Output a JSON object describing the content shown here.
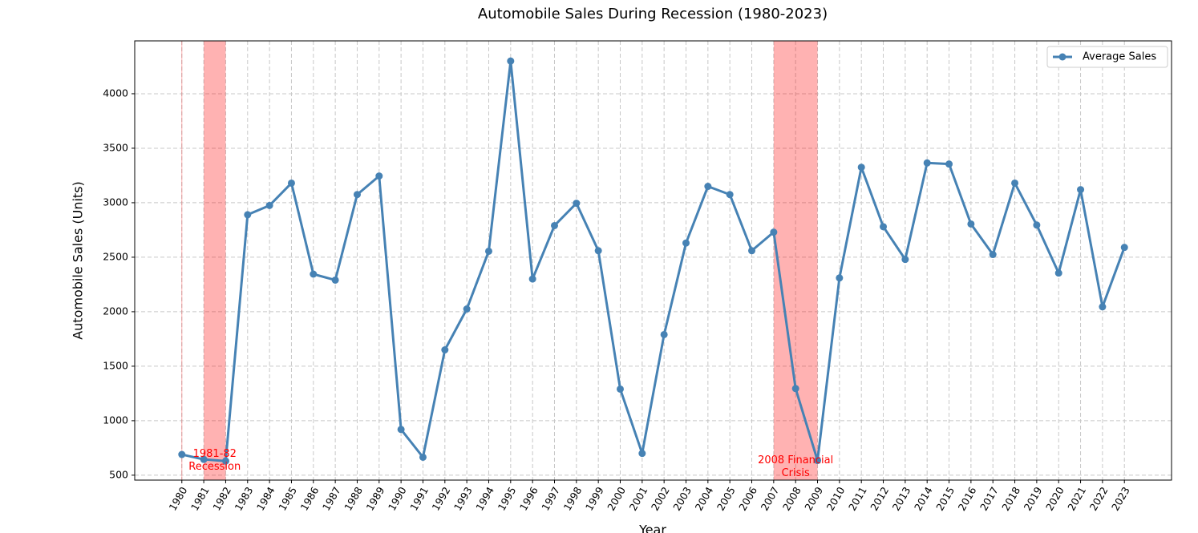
{
  "chart_data": {
    "type": "line",
    "title": "Automobile Sales During Recession (1980-2023)",
    "xlabel": "Year",
    "ylabel": "Automobile Sales (Units)",
    "x": [
      1980,
      1981,
      1982,
      1983,
      1984,
      1985,
      1986,
      1987,
      1988,
      1989,
      1990,
      1991,
      1992,
      1993,
      1994,
      1995,
      1996,
      1997,
      1998,
      1999,
      2000,
      2001,
      2002,
      2003,
      2004,
      2005,
      2006,
      2007,
      2008,
      2009,
      2010,
      2011,
      2012,
      2013,
      2014,
      2015,
      2016,
      2017,
      2018,
      2019,
      2020,
      2021,
      2022,
      2023
    ],
    "series": [
      {
        "name": "Average Sales",
        "color": "#4682b4",
        "values": [
          690,
          645,
          630,
          2890,
          2975,
          3180,
          2345,
          2290,
          3075,
          3245,
          920,
          665,
          1650,
          2025,
          2555,
          4300,
          2300,
          2790,
          2995,
          2560,
          1290,
          700,
          1790,
          2630,
          3150,
          3075,
          2560,
          2730,
          1295,
          635,
          2310,
          3325,
          2780,
          2480,
          3365,
          3355,
          2805,
          2525,
          3180,
          2795,
          2355,
          3120,
          2045,
          2590
        ]
      }
    ],
    "xlim": [
      1977.85,
      2025.15
    ],
    "ylim": [
      455,
      4485
    ],
    "xticks": [
      1980,
      1981,
      1982,
      1983,
      1984,
      1985,
      1986,
      1987,
      1988,
      1989,
      1990,
      1991,
      1992,
      1993,
      1994,
      1995,
      1996,
      1997,
      1998,
      1999,
      2000,
      2001,
      2002,
      2003,
      2004,
      2005,
      2006,
      2007,
      2008,
      2009,
      2010,
      2011,
      2012,
      2013,
      2014,
      2015,
      2016,
      2017,
      2018,
      2019,
      2020,
      2021,
      2022,
      2023
    ],
    "yticks": [
      500,
      1000,
      1500,
      2000,
      2500,
      3000,
      3500,
      4000
    ],
    "grid": true,
    "legend": "upper right",
    "shaded_spans": {
      "color": "#ff0000",
      "spans": [
        [
          1980,
          1980
        ],
        [
          1981,
          1982
        ],
        [
          2007,
          2009
        ]
      ]
    },
    "annotations": [
      {
        "lines": [
          "1981-82",
          "Recession"
        ],
        "x": 1981.5,
        "y": 640,
        "color": "#ff0000"
      },
      {
        "lines": [
          "2008 Financial",
          "Crisis"
        ],
        "x": 2008,
        "y": 580,
        "color": "#ff0000"
      }
    ]
  }
}
